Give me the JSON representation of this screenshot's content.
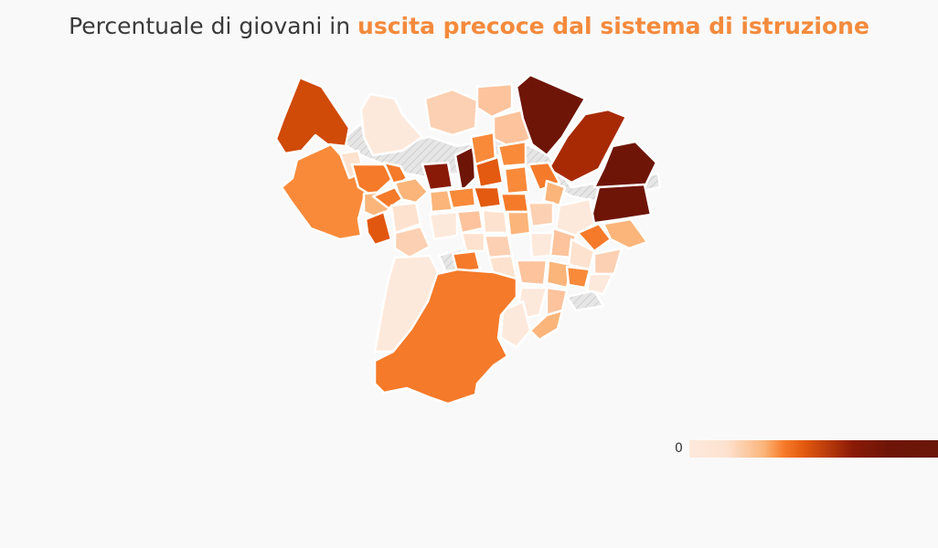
{
  "title": {
    "prefix": "Percentuale di giovani in",
    "highlight": "uscita precoce dal sistema di istruzione"
  },
  "legend": {
    "min_label": "0",
    "color_ramp": [
      "#fde9db",
      "#fbb57a",
      "#f77b2a",
      "#e35a10",
      "#b8390b",
      "#6e1508"
    ]
  },
  "map": {
    "no_data_pattern": "hatched-grey",
    "border_color": "#ffffff"
  },
  "colors": {
    "title_text": "#3a3a3a",
    "title_highlight": "#f48a3c",
    "background": "#f9f9f9"
  }
}
